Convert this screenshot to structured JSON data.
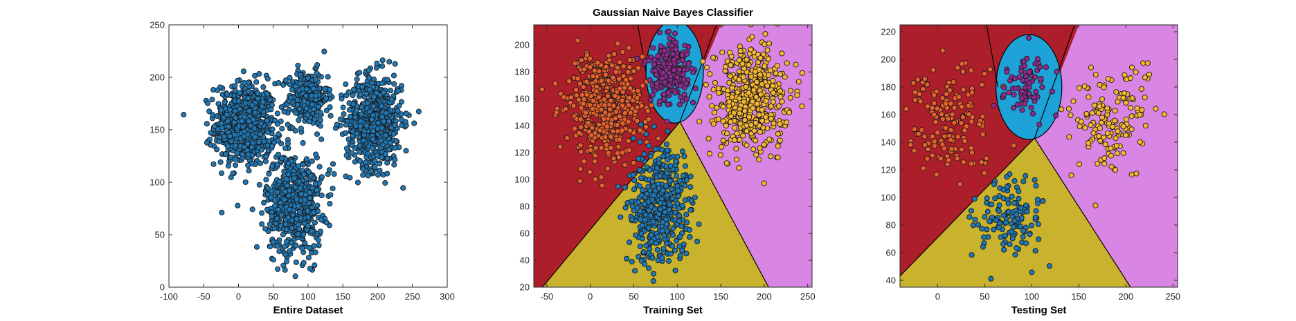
{
  "figure_title": "Gaussian Naive Bayes Classifier",
  "colors": {
    "blue_cluster": "#1f77b4",
    "orange_cluster": "#e8612c",
    "purple_cluster": "#8e2c8e",
    "yellow_cluster": "#f5b731",
    "region_red": "#ad1e2b",
    "region_cyan": "#1ea3d8",
    "region_magenta": "#d985e3",
    "region_olive": "#c9b32e"
  },
  "chart_data": [
    {
      "type": "scatter",
      "xlabel": "Entire Dataset",
      "xlim": [
        -100,
        300
      ],
      "ylim": [
        0,
        250
      ],
      "xticks": [
        -100,
        -50,
        0,
        50,
        100,
        150,
        200,
        250,
        300
      ],
      "yticks": [
        0,
        50,
        100,
        150,
        200,
        250
      ],
      "clusters": [
        {
          "center": [
            10,
            155
          ],
          "spread": [
            22,
            20
          ],
          "count": 650
        },
        {
          "center": [
            100,
            180
          ],
          "spread": [
            14,
            13
          ],
          "count": 300
        },
        {
          "center": [
            195,
            158
          ],
          "spread": [
            20,
            22
          ],
          "count": 650
        },
        {
          "center": [
            80,
            80
          ],
          "spread": [
            20,
            24
          ],
          "count": 600
        }
      ]
    },
    {
      "type": "scatter",
      "title": "Gaussian Naive Bayes Classifier",
      "xlabel": "Training Set",
      "xlim": [
        -65,
        255
      ],
      "ylim": [
        20,
        215
      ],
      "xticks": [
        -50,
        0,
        50,
        100,
        150,
        200,
        250
      ],
      "yticks": [
        20,
        40,
        60,
        80,
        100,
        120,
        140,
        160,
        180,
        200
      ],
      "clusters": [
        {
          "center": [
            15,
            155
          ],
          "spread": [
            22,
            20
          ],
          "count": 500
        },
        {
          "center": [
            90,
            180
          ],
          "spread": [
            13,
            12
          ],
          "count": 230
        },
        {
          "center": [
            185,
            160
          ],
          "spread": [
            20,
            20
          ],
          "count": 500
        },
        {
          "center": [
            80,
            80
          ],
          "spread": [
            18,
            22
          ],
          "count": 450
        }
      ]
    },
    {
      "type": "scatter",
      "xlabel": "Testing Set",
      "xlim": [
        -40,
        255
      ],
      "ylim": [
        35,
        225
      ],
      "xticks": [
        0,
        50,
        100,
        150,
        200,
        250
      ],
      "yticks": [
        40,
        60,
        80,
        100,
        120,
        140,
        160,
        180,
        200,
        220
      ],
      "clusters": [
        {
          "center": [
            15,
            155
          ],
          "spread": [
            22,
            20
          ],
          "count": 150
        },
        {
          "center": [
            95,
            180
          ],
          "spread": [
            12,
            12
          ],
          "count": 80
        },
        {
          "center": [
            185,
            155
          ],
          "spread": [
            20,
            20
          ],
          "count": 150
        },
        {
          "center": [
            75,
            83
          ],
          "spread": [
            18,
            16
          ],
          "count": 130
        }
      ]
    }
  ]
}
